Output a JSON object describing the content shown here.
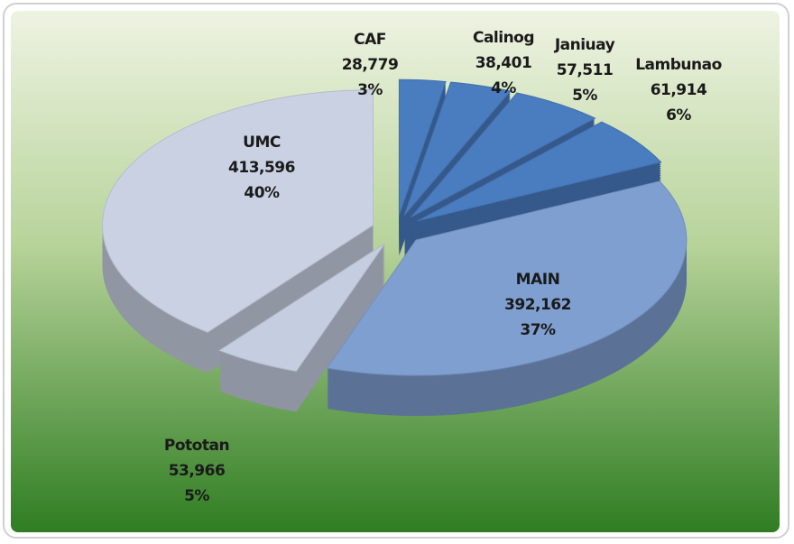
{
  "chart_data": {
    "type": "pie",
    "categories": [
      "CAF",
      "Calinog",
      "Janiuay",
      "Lambunao",
      "MAIN",
      "Pototan",
      "UMC"
    ],
    "values": [
      28779,
      38401,
      57511,
      61914,
      392162,
      53966,
      413596
    ],
    "value_labels": [
      "28,779",
      "38,401",
      "57,511",
      "61,914",
      "392,162",
      "53,966",
      "413,596"
    ],
    "percents": [
      3,
      4,
      5,
      6,
      37,
      5,
      40
    ],
    "percent_labels": [
      "3%",
      "4%",
      "5%",
      "6%",
      "37%",
      "5%",
      "40%"
    ],
    "colors": [
      "#4a7cc0",
      "#4a7cc0",
      "#4a7cc0",
      "#4a7cc0",
      "#7f9fd0",
      "#c5cde0",
      "#c9d1e3"
    ]
  }
}
